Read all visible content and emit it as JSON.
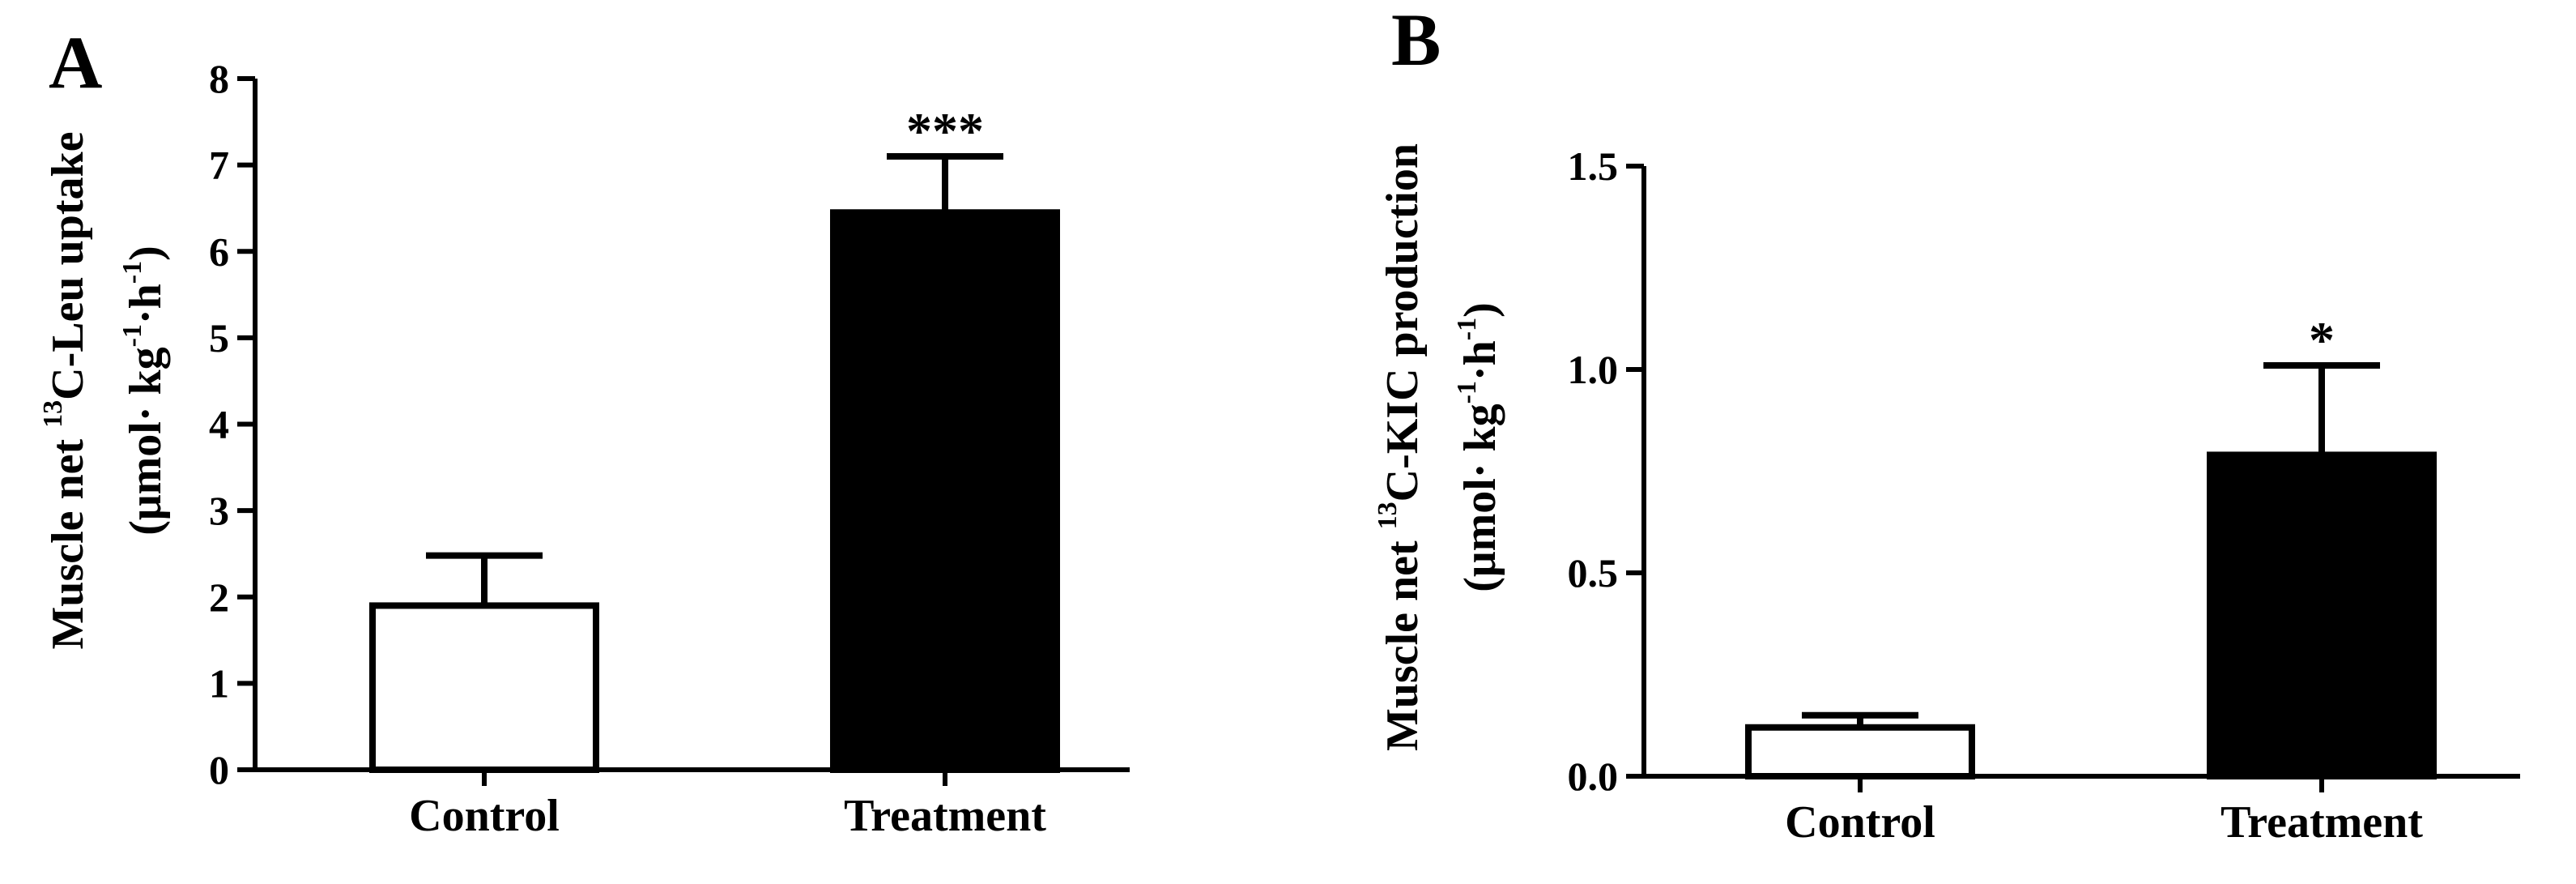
{
  "colors": {
    "ink": "#000000",
    "paper": "#ffffff"
  },
  "chart_data": [
    {
      "type": "bar",
      "panel": "A",
      "title": "",
      "xlabel": "",
      "ylabel_main": "Muscle net ",
      "ylabel_sup": "13",
      "ylabel_rest": "C-Leu uptake",
      "yunit_parts": [
        "(μmol· kg",
        "-1",
        "·h",
        "-1",
        ")"
      ],
      "ylim": [
        0,
        8
      ],
      "yticks": [
        0,
        1,
        2,
        3,
        4,
        5,
        6,
        7,
        8
      ],
      "ytick_labels": [
        "0",
        "1",
        "2",
        "3",
        "4",
        "5",
        "6",
        "7",
        "8"
      ],
      "categories": [
        "Control",
        "Treatment"
      ],
      "values": [
        1.9,
        6.45
      ],
      "errors": [
        0.58,
        0.65
      ],
      "fills": [
        "#ffffff",
        "#000000"
      ],
      "annotations": [
        "",
        "***"
      ]
    },
    {
      "type": "bar",
      "panel": "B",
      "title": "",
      "xlabel": "",
      "ylabel_main": "Muscle net ",
      "ylabel_sup": "13",
      "ylabel_rest": "C-KIC production",
      "yunit_parts": [
        "(μmol· kg",
        "-1",
        "·h",
        "-1",
        ")"
      ],
      "ylim": [
        0,
        1.5
      ],
      "yticks": [
        0.0,
        0.5,
        1.0,
        1.5
      ],
      "ytick_labels": [
        "0.0",
        "0.5",
        "1.0",
        "1.5"
      ],
      "categories": [
        "Control",
        "Treatment"
      ],
      "values": [
        0.12,
        0.79
      ],
      "errors": [
        0.03,
        0.22
      ],
      "fills": [
        "#ffffff",
        "#000000"
      ],
      "annotations": [
        "",
        "*"
      ]
    }
  ]
}
